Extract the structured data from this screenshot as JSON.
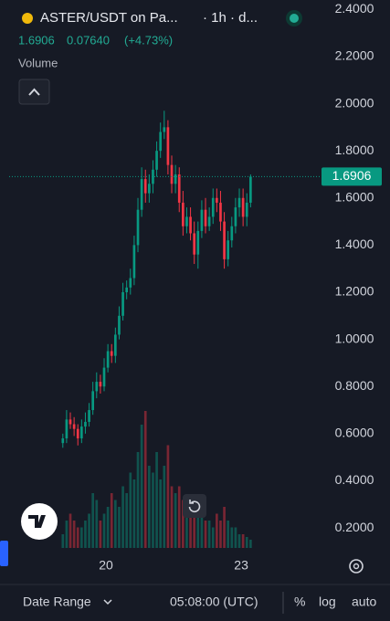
{
  "header": {
    "symbol": "ASTER/USDT on Pa...",
    "interval": "· 1h · d...",
    "price": "1.6906",
    "change": "0.07640",
    "change_pct": "(+4.73%)"
  },
  "volume_label": "Volume",
  "bottom_bar": {
    "date_range": "Date Range",
    "time": "05:08:00 (UTC)",
    "percent": "%",
    "log": "log",
    "auto": "auto"
  },
  "chart_data": {
    "type": "candlestick",
    "x": [
      -23,
      -21,
      -19,
      -17,
      -15,
      -13,
      -11,
      -9,
      -7,
      -5,
      -3,
      -1,
      1,
      3,
      5,
      7,
      9,
      11,
      13,
      15,
      17,
      19,
      21,
      23,
      25,
      27,
      29,
      31,
      33,
      35,
      37,
      39,
      41,
      43,
      45,
      47,
      49,
      51,
      53,
      55,
      57,
      59,
      61,
      63,
      65,
      67,
      69,
      71,
      73,
      75,
      77
    ],
    "open": [
      0.56,
      0.58,
      0.66,
      0.64,
      0.62,
      0.58,
      0.63,
      0.65,
      0.7,
      0.78,
      0.82,
      0.8,
      0.88,
      0.95,
      0.93,
      1.02,
      1.1,
      1.2,
      1.22,
      1.26,
      1.4,
      1.55,
      1.68,
      1.62,
      1.66,
      1.72,
      1.8,
      1.88,
      1.9,
      1.74,
      1.66,
      1.7,
      1.58,
      1.48,
      1.52,
      1.45,
      1.36,
      1.46,
      1.55,
      1.48,
      1.52,
      1.6,
      1.58,
      1.5,
      1.34,
      1.42,
      1.48,
      1.56,
      1.6,
      1.52,
      1.58
    ],
    "high": [
      0.6,
      0.7,
      0.69,
      0.67,
      0.64,
      0.66,
      0.69,
      0.73,
      0.82,
      0.86,
      0.85,
      0.92,
      0.98,
      0.98,
      1.05,
      1.14,
      1.24,
      1.25,
      1.3,
      1.44,
      1.6,
      1.73,
      1.72,
      1.7,
      1.76,
      1.84,
      1.92,
      1.97,
      1.93,
      1.78,
      1.74,
      1.73,
      1.63,
      1.56,
      1.56,
      1.5,
      1.5,
      1.59,
      1.6,
      1.56,
      1.64,
      1.64,
      1.63,
      1.54,
      1.46,
      1.52,
      1.6,
      1.64,
      1.64,
      1.62,
      1.7
    ],
    "low": [
      0.54,
      0.56,
      0.62,
      0.59,
      0.55,
      0.56,
      0.6,
      0.63,
      0.68,
      0.75,
      0.77,
      0.78,
      0.86,
      0.9,
      0.9,
      1.0,
      1.08,
      1.17,
      1.19,
      1.23,
      1.37,
      1.52,
      1.58,
      1.58,
      1.62,
      1.69,
      1.77,
      1.85,
      1.7,
      1.62,
      1.62,
      1.54,
      1.44,
      1.45,
      1.42,
      1.32,
      1.3,
      1.43,
      1.45,
      1.46,
      1.49,
      1.54,
      1.46,
      1.3,
      1.31,
      1.39,
      1.45,
      1.52,
      1.48,
      1.48,
      1.56
    ],
    "close": [
      0.58,
      0.66,
      0.64,
      0.62,
      0.58,
      0.63,
      0.65,
      0.7,
      0.78,
      0.82,
      0.8,
      0.88,
      0.95,
      0.93,
      1.02,
      1.1,
      1.2,
      1.22,
      1.26,
      1.4,
      1.55,
      1.68,
      1.62,
      1.66,
      1.72,
      1.8,
      1.88,
      1.9,
      1.74,
      1.66,
      1.7,
      1.58,
      1.48,
      1.52,
      1.45,
      1.36,
      1.46,
      1.55,
      1.48,
      1.52,
      1.6,
      1.58,
      1.5,
      1.34,
      1.42,
      1.48,
      1.56,
      1.6,
      1.52,
      1.58,
      1.6906
    ],
    "volume": [
      10,
      20,
      25,
      20,
      15,
      15,
      20,
      25,
      40,
      35,
      20,
      25,
      30,
      40,
      35,
      30,
      45,
      40,
      55,
      50,
      70,
      90,
      100,
      60,
      55,
      70,
      50,
      60,
      75,
      45,
      40,
      45,
      35,
      30,
      25,
      30,
      35,
      25,
      20,
      20,
      15,
      25,
      20,
      30,
      20,
      15,
      15,
      10,
      10,
      8,
      6
    ],
    "up_color": "#089981",
    "down_color": "#f23645",
    "last_price": 1.6906,
    "xlim": [
      -51.6,
      113.8
    ],
    "xticks": [
      {
        "value": 0,
        "label": "20"
      },
      {
        "value": 72,
        "label": "23"
      }
    ],
    "ylim": [
      0.115,
      2.44
    ],
    "yticks": [
      {
        "value": 2.4,
        "label": "2.4000"
      },
      {
        "value": 2.2,
        "label": "2.2000"
      },
      {
        "value": 2.0,
        "label": "2.0000"
      },
      {
        "value": 1.8,
        "label": "1.8000"
      },
      {
        "value": 1.6,
        "label": "1.6000"
      },
      {
        "value": 1.4,
        "label": "1.4000"
      },
      {
        "value": 1.2,
        "label": "1.2000"
      },
      {
        "value": 1.0,
        "label": "1.0000"
      },
      {
        "value": 0.8,
        "label": "0.8000"
      },
      {
        "value": 0.6,
        "label": "0.6000"
      },
      {
        "value": 0.4,
        "label": "0.4000"
      },
      {
        "value": 0.2,
        "label": "0.2000"
      }
    ],
    "grid": false
  }
}
